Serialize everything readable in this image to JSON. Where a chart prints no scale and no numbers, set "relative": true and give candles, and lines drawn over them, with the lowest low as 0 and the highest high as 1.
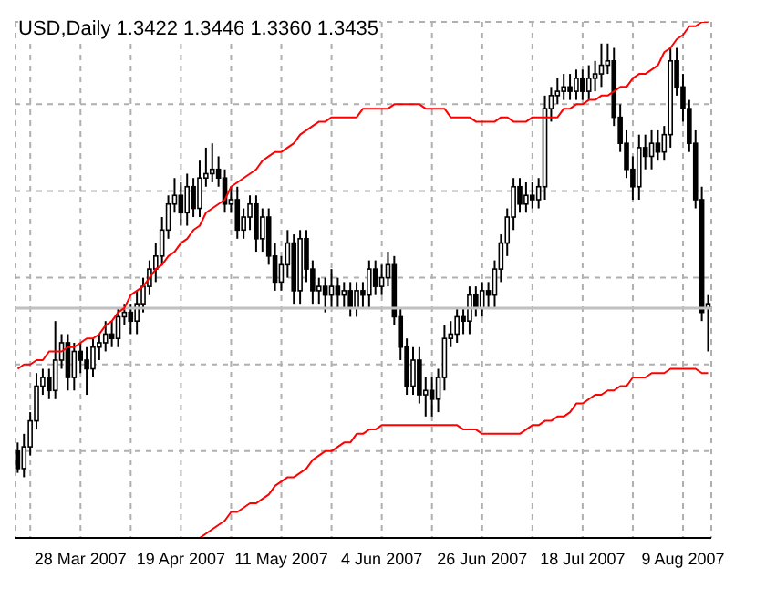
{
  "chart_data": {
    "type": "candlestick",
    "title": "USD,Daily 1.3422 1.3446 1.3360 1.3435",
    "relative": true,
    "grid": true,
    "categories": [
      null,
      null,
      null,
      null,
      null,
      null,
      null,
      null,
      null,
      null,
      "28 Mar 2007",
      null,
      null,
      null,
      null,
      null,
      null,
      null,
      null,
      null,
      null,
      null,
      null,
      null,
      null,
      null,
      "19 Apr 2007",
      null,
      null,
      null,
      null,
      null,
      null,
      null,
      null,
      null,
      null,
      null,
      null,
      null,
      null,
      null,
      "11 May 2007",
      null,
      null,
      null,
      null,
      null,
      null,
      null,
      null,
      null,
      null,
      null,
      null,
      null,
      null,
      null,
      "4 Jun 2007",
      null,
      null,
      null,
      null,
      null,
      null,
      null,
      null,
      null,
      null,
      null,
      null,
      null,
      null,
      null,
      "26 Jun 2007",
      null,
      null,
      null,
      null,
      null,
      null,
      null,
      null,
      null,
      null,
      null,
      null,
      null,
      null,
      null,
      "18 Jul 2007",
      null,
      null,
      null,
      null,
      null,
      null,
      null,
      null,
      null,
      null,
      null,
      null,
      null,
      null,
      null,
      "9 Aug 2007",
      null,
      null,
      null,
      null
    ],
    "ref_lines": [
      {
        "axis": "y",
        "value": 0.39,
        "color": "#c0c0c0"
      }
    ],
    "color": "#000000",
    "ohlc": [
      [
        0.06,
        0.08,
        0.01,
        0.02
      ],
      [
        0.02,
        0.1,
        0,
        0.07
      ],
      [
        0.07,
        0.15,
        0.05,
        0.13
      ],
      [
        0.13,
        0.24,
        0.11,
        0.21
      ],
      [
        0.21,
        0.25,
        0.19,
        0.23
      ],
      [
        0.23,
        0.25,
        0.18,
        0.2
      ],
      [
        0.2,
        0.36,
        0.18,
        0.27
      ],
      [
        0.27,
        0.33,
        0.25,
        0.31
      ],
      [
        0.31,
        0.33,
        0.2,
        0.23
      ],
      [
        0.23,
        0.31,
        0.2,
        0.29
      ],
      [
        0.29,
        0.31,
        0.24,
        0.27
      ],
      [
        0.27,
        0.3,
        0.19,
        0.25
      ],
      [
        0.25,
        0.32,
        0.23,
        0.3
      ],
      [
        0.3,
        0.33,
        0.27,
        0.31
      ],
      [
        0.31,
        0.36,
        0.29,
        0.33
      ],
      [
        0.33,
        0.36,
        0.3,
        0.32
      ],
      [
        0.32,
        0.39,
        0.3,
        0.37
      ],
      [
        0.37,
        0.4,
        0.35,
        0.38
      ],
      [
        0.38,
        0.4,
        0.33,
        0.36
      ],
      [
        0.36,
        0.43,
        0.33,
        0.4
      ],
      [
        0.4,
        0.46,
        0.38,
        0.44
      ],
      [
        0.44,
        0.5,
        0.42,
        0.48
      ],
      [
        0.48,
        0.54,
        0.45,
        0.51
      ],
      [
        0.51,
        0.6,
        0.49,
        0.57
      ],
      [
        0.57,
        0.65,
        0.55,
        0.63
      ],
      [
        0.63,
        0.69,
        0.61,
        0.65
      ],
      [
        0.65,
        0.68,
        0.58,
        0.61
      ],
      [
        0.61,
        0.7,
        0.58,
        0.67
      ],
      [
        0.67,
        0.69,
        0.6,
        0.62
      ],
      [
        0.62,
        0.73,
        0.6,
        0.69
      ],
      [
        0.69,
        0.76,
        0.67,
        0.7
      ],
      [
        0.7,
        0.77,
        0.68,
        0.71
      ],
      [
        0.71,
        0.74,
        0.67,
        0.69
      ],
      [
        0.69,
        0.71,
        0.61,
        0.63
      ],
      [
        0.63,
        0.67,
        0.61,
        0.64
      ],
      [
        0.64,
        0.67,
        0.55,
        0.57
      ],
      [
        0.57,
        0.62,
        0.55,
        0.6
      ],
      [
        0.6,
        0.65,
        0.57,
        0.63
      ],
      [
        0.63,
        0.65,
        0.52,
        0.55
      ],
      [
        0.55,
        0.62,
        0.52,
        0.6
      ],
      [
        0.6,
        0.62,
        0.49,
        0.51
      ],
      [
        0.51,
        0.54,
        0.43,
        0.45
      ],
      [
        0.45,
        0.51,
        0.43,
        0.49
      ],
      [
        0.49,
        0.57,
        0.46,
        0.54
      ],
      [
        0.54,
        0.56,
        0.4,
        0.43
      ],
      [
        0.43,
        0.57,
        0.4,
        0.55
      ],
      [
        0.55,
        0.57,
        0.45,
        0.48
      ],
      [
        0.48,
        0.5,
        0.4,
        0.43
      ],
      [
        0.43,
        0.46,
        0.4,
        0.44
      ],
      [
        0.44,
        0.46,
        0.38,
        0.42
      ],
      [
        0.42,
        0.48,
        0.39,
        0.44
      ],
      [
        0.44,
        0.46,
        0.39,
        0.42
      ],
      [
        0.42,
        0.45,
        0.39,
        0.43
      ],
      [
        0.43,
        0.45,
        0.37,
        0.39
      ],
      [
        0.39,
        0.45,
        0.37,
        0.43
      ],
      [
        0.43,
        0.45,
        0.39,
        0.42
      ],
      [
        0.42,
        0.5,
        0.39,
        0.48
      ],
      [
        0.48,
        0.5,
        0.42,
        0.44
      ],
      [
        0.44,
        0.49,
        0.42,
        0.46
      ],
      [
        0.46,
        0.52,
        0.44,
        0.49
      ],
      [
        0.49,
        0.51,
        0.35,
        0.37
      ],
      [
        0.37,
        0.39,
        0.27,
        0.3
      ],
      [
        0.3,
        0.32,
        0.19,
        0.21
      ],
      [
        0.21,
        0.3,
        0.19,
        0.27
      ],
      [
        0.27,
        0.3,
        0.17,
        0.19
      ],
      [
        0.19,
        0.23,
        0.14,
        0.2
      ],
      [
        0.2,
        0.23,
        0.14,
        0.18
      ],
      [
        0.18,
        0.25,
        0.15,
        0.23
      ],
      [
        0.23,
        0.35,
        0.2,
        0.32
      ],
      [
        0.32,
        0.36,
        0.3,
        0.33
      ],
      [
        0.33,
        0.39,
        0.31,
        0.37
      ],
      [
        0.37,
        0.39,
        0.33,
        0.36
      ],
      [
        0.36,
        0.44,
        0.33,
        0.42
      ],
      [
        0.42,
        0.44,
        0.37,
        0.39
      ],
      [
        0.39,
        0.45,
        0.37,
        0.43
      ],
      [
        0.43,
        0.45,
        0.39,
        0.42
      ],
      [
        0.42,
        0.5,
        0.39,
        0.48
      ],
      [
        0.48,
        0.56,
        0.45,
        0.54
      ],
      [
        0.54,
        0.62,
        0.51,
        0.6
      ],
      [
        0.6,
        0.69,
        0.57,
        0.67
      ],
      [
        0.67,
        0.69,
        0.61,
        0.63
      ],
      [
        0.63,
        0.68,
        0.61,
        0.65
      ],
      [
        0.65,
        0.68,
        0.62,
        0.64
      ],
      [
        0.64,
        0.69,
        0.62,
        0.67
      ],
      [
        0.67,
        0.88,
        0.64,
        0.85
      ],
      [
        0.85,
        0.9,
        0.82,
        0.88
      ],
      [
        0.88,
        0.92,
        0.86,
        0.89
      ],
      [
        0.89,
        0.93,
        0.87,
        0.9
      ],
      [
        0.9,
        0.93,
        0.87,
        0.89
      ],
      [
        0.89,
        0.94,
        0.87,
        0.92
      ],
      [
        0.92,
        0.94,
        0.87,
        0.89
      ],
      [
        0.89,
        0.95,
        0.87,
        0.92
      ],
      [
        0.92,
        0.96,
        0.89,
        0.93
      ],
      [
        0.93,
        1.0,
        0.9,
        0.95
      ],
      [
        0.95,
        1.0,
        0.93,
        0.96
      ],
      [
        0.96,
        0.99,
        0.81,
        0.83
      ],
      [
        0.83,
        0.86,
        0.75,
        0.77
      ],
      [
        0.77,
        0.8,
        0.69,
        0.71
      ],
      [
        0.71,
        0.74,
        0.64,
        0.67
      ],
      [
        0.67,
        0.79,
        0.64,
        0.76
      ],
      [
        0.76,
        0.79,
        0.71,
        0.74
      ],
      [
        0.74,
        0.8,
        0.71,
        0.77
      ],
      [
        0.77,
        0.8,
        0.73,
        0.75
      ],
      [
        0.75,
        0.81,
        0.73,
        0.79
      ],
      [
        0.79,
        0.99,
        0.76,
        0.96
      ],
      [
        0.96,
        0.99,
        0.88,
        0.9
      ],
      [
        0.9,
        0.93,
        0.82,
        0.85
      ],
      [
        0.85,
        0.87,
        0.75,
        0.77
      ],
      [
        0.77,
        0.8,
        0.62,
        0.64
      ],
      [
        0.64,
        0.67,
        0.36,
        0.38
      ],
      [
        0.39,
        0.42,
        0.29,
        0.4
      ]
    ],
    "series": [
      {
        "type": "line",
        "color": "#ff0000",
        "values": [
          0.25,
          0.26,
          0.26,
          0.27,
          0.27,
          0.29,
          0.29,
          0.29,
          0.3,
          0.3,
          0.31,
          0.32,
          0.32,
          0.33,
          0.35,
          0.36,
          0.38,
          0.39,
          0.42,
          0.43,
          0.44,
          0.46,
          0.48,
          0.49,
          0.51,
          0.52,
          0.54,
          0.55,
          0.57,
          0.58,
          0.61,
          0.62,
          0.63,
          0.64,
          0.67,
          0.68,
          0.69,
          0.7,
          0.71,
          0.73,
          0.74,
          0.75,
          0.75,
          0.76,
          0.77,
          0.79,
          0.8,
          0.81,
          0.82,
          0.82,
          0.83,
          0.83,
          0.83,
          0.83,
          0.83,
          0.85,
          0.85,
          0.85,
          0.85,
          0.85,
          0.86,
          0.86,
          0.86,
          0.86,
          0.86,
          0.85,
          0.85,
          0.85,
          0.85,
          0.83,
          0.83,
          0.83,
          0.83,
          0.82,
          0.82,
          0.82,
          0.82,
          0.83,
          0.83,
          0.82,
          0.82,
          0.82,
          0.83,
          0.83,
          0.83,
          0.83,
          0.83,
          0.85,
          0.85,
          0.86,
          0.86,
          0.87,
          0.87,
          0.88,
          0.88,
          0.89,
          0.9,
          0.9,
          0.92,
          0.93,
          0.93,
          0.94,
          0.95,
          0.98,
          0.99,
          1.01,
          1.02,
          1.04,
          1.04,
          1.05,
          1.05
        ]
      },
      {
        "type": "line",
        "color": "#ff0000",
        "values": [
          null,
          null,
          null,
          null,
          null,
          null,
          null,
          null,
          null,
          null,
          null,
          null,
          null,
          null,
          null,
          null,
          null,
          null,
          null,
          null,
          null,
          null,
          null,
          null,
          null,
          null,
          null,
          null,
          null,
          -0.14,
          -0.13,
          -0.12,
          -0.11,
          -0.1,
          -0.08,
          -0.08,
          -0.07,
          -0.06,
          -0.06,
          -0.05,
          -0.04,
          -0.02,
          -0.01,
          0,
          0,
          0.01,
          0.02,
          0.04,
          0.05,
          0.06,
          0.06,
          0.07,
          0.08,
          0.08,
          0.1,
          0.1,
          0.11,
          0.11,
          0.12,
          0.12,
          0.12,
          0.12,
          0.12,
          0.12,
          0.12,
          0.12,
          0.12,
          0.12,
          0.12,
          0.12,
          0.12,
          0.11,
          0.11,
          0.11,
          0.1,
          0.1,
          0.1,
          0.1,
          0.1,
          0.1,
          0.1,
          0.11,
          0.12,
          0.12,
          0.13,
          0.13,
          0.14,
          0.14,
          0.15,
          0.17,
          0.17,
          0.18,
          0.19,
          0.19,
          0.2,
          0.2,
          0.21,
          0.21,
          0.23,
          0.23,
          0.23,
          0.24,
          0.24,
          0.24,
          0.25,
          0.25,
          0.25,
          0.25,
          0.25,
          0.24,
          0.24
        ]
      }
    ]
  }
}
